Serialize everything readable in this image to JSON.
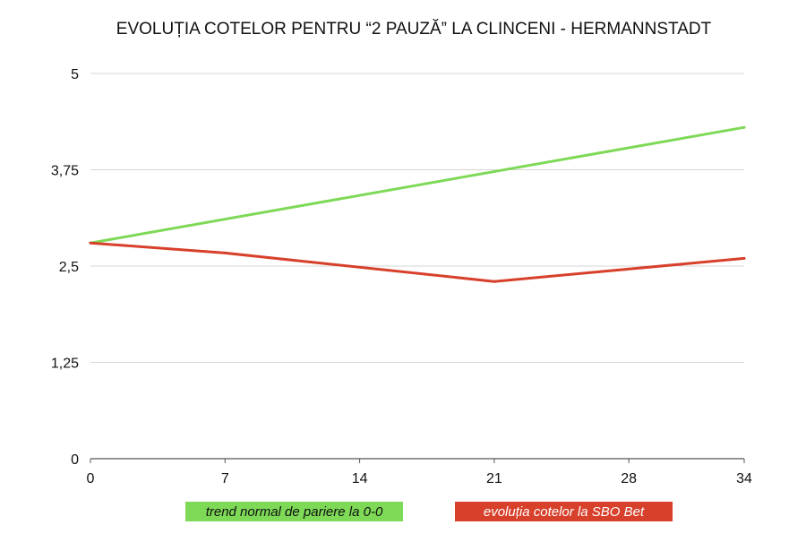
{
  "chart_data": {
    "type": "line",
    "title": "EVOLUȚIA COTELOR PENTRU “2 PAUZĂ” LA CLINCENI - HERMANNSTADT",
    "xlabel": "",
    "ylabel": "",
    "x": [
      0,
      7,
      14,
      21,
      28,
      34
    ],
    "x_ticks": [
      "0",
      "7",
      "14",
      "21",
      "28",
      "34"
    ],
    "xlim": [
      0,
      34
    ],
    "y_ticks": [
      "0",
      "1,25",
      "2,5",
      "3,75",
      "5"
    ],
    "y_tick_values": [
      0,
      1.25,
      2.5,
      3.75,
      5
    ],
    "ylim": [
      0,
      5
    ],
    "grid": true,
    "legend_position": "bottom",
    "series": [
      {
        "name": "trend normal de pariere la 0-0",
        "color": "#7ed957",
        "x": [
          0,
          34
        ],
        "values": [
          2.8,
          4.3
        ]
      },
      {
        "name": "evoluția cotelor la SBO Bet",
        "color": "#d7402b",
        "x": [
          0,
          7,
          21,
          34
        ],
        "values": [
          2.8,
          2.67,
          2.3,
          2.6
        ]
      }
    ]
  }
}
